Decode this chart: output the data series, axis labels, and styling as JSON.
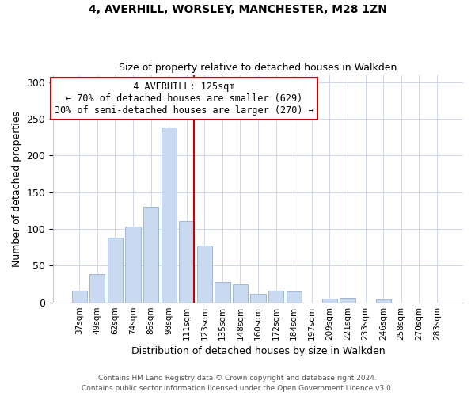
{
  "title": "4, AVERHILL, WORSLEY, MANCHESTER, M28 1ZN",
  "subtitle": "Size of property relative to detached houses in Walkden",
  "xlabel": "Distribution of detached houses by size in Walkden",
  "ylabel": "Number of detached properties",
  "footer_line1": "Contains HM Land Registry data © Crown copyright and database right 2024.",
  "footer_line2": "Contains public sector information licensed under the Open Government Licence v3.0.",
  "bar_labels": [
    "37sqm",
    "49sqm",
    "62sqm",
    "74sqm",
    "86sqm",
    "98sqm",
    "111sqm",
    "123sqm",
    "135sqm",
    "148sqm",
    "160sqm",
    "172sqm",
    "184sqm",
    "197sqm",
    "209sqm",
    "221sqm",
    "233sqm",
    "246sqm",
    "258sqm",
    "270sqm",
    "283sqm"
  ],
  "bar_values": [
    16,
    38,
    88,
    103,
    130,
    238,
    111,
    77,
    28,
    24,
    12,
    16,
    15,
    0,
    5,
    6,
    0,
    4,
    0,
    0,
    0
  ],
  "bar_color": "#c9d9f0",
  "bar_edge_color": "#a0b8d8",
  "marker_line_index": 6,
  "marker_line_color": "#cc0000",
  "annotation_title": "4 AVERHILL: 125sqm",
  "annotation_line1": "← 70% of detached houses are smaller (629)",
  "annotation_line2": "30% of semi-detached houses are larger (270) →",
  "annotation_box_color": "#ffffff",
  "annotation_box_edge_color": "#cc0000",
  "ylim": [
    0,
    310
  ],
  "yticks": [
    0,
    50,
    100,
    150,
    200,
    250,
    300
  ]
}
